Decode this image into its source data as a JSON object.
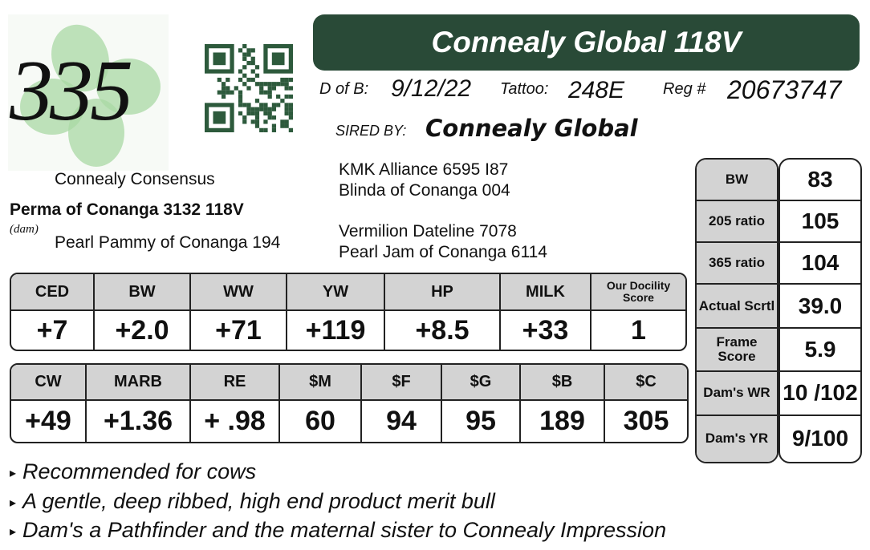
{
  "lot_number": "335",
  "title": "Connealy Global 118V",
  "info": {
    "dob_label": "D of B:",
    "dob": "9/12/22",
    "tattoo_label": "Tattoo:",
    "tattoo": "248E",
    "reg_label": "Reg #",
    "reg": "20673747"
  },
  "sire": {
    "label": "SIRED BY:",
    "name": "Connealy Global"
  },
  "pedigree": {
    "sire_sire": "Connealy Consensus",
    "dam": "Perma of Conanga 3132 118V",
    "dam_label": "(dam)",
    "dam_dam": "Pearl Pammy of Conanga 194",
    "right": [
      "KMK Alliance 6595 I87",
      "Blinda of Conanga 004",
      "Vermilion Dateline 7078",
      "Pearl Jam of Conanga 6114"
    ]
  },
  "epd1": {
    "headers": [
      "CED",
      "BW",
      "WW",
      "YW",
      "HP",
      "MILK",
      "Our Docility Score"
    ],
    "values": [
      "+7",
      "+2.0",
      "+71",
      "+119",
      "+8.5",
      "+33",
      "1"
    ]
  },
  "epd2": {
    "headers": [
      "CW",
      "MARB",
      "RE",
      "$M",
      "$F",
      "$G",
      "$B",
      "$C"
    ],
    "values": [
      "+49",
      "+1.36",
      "+ .98",
      "60",
      "94",
      "95",
      "189",
      "305"
    ]
  },
  "performance": [
    {
      "label": "BW",
      "value": "83"
    },
    {
      "label": "205 ratio",
      "value": "105"
    },
    {
      "label": "365 ratio",
      "value": "104"
    },
    {
      "label": "Actual Scrtl",
      "value": "39.0"
    },
    {
      "label": "Frame Score",
      "value": "5.9"
    },
    {
      "label": "Dam's WR",
      "value": "10 /102"
    },
    {
      "label": "Dam's YR",
      "value": "9/100"
    }
  ],
  "notes": [
    "Recommended for cows",
    "A gentle, deep ribbed, high end product merit bull",
    "Dam's a Pathfinder and the maternal sister to Connealy Impression"
  ],
  "colors": {
    "title_bg": "#294a37",
    "header_bg": "#d3d3d3",
    "clover": "#a9d8a4",
    "qr": "#2d5a3c"
  }
}
